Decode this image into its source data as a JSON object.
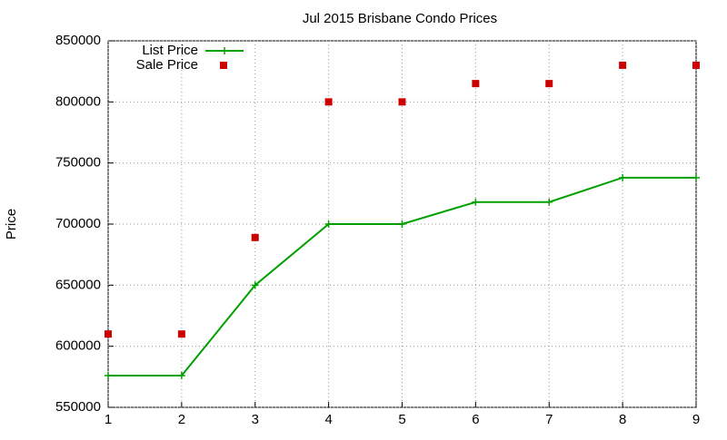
{
  "chart_data": {
    "type": "line",
    "title": "Jul 2015 Brisbane Condo Prices",
    "y_label": "Price",
    "x": [
      1,
      2,
      3,
      4,
      5,
      6,
      7,
      8,
      9
    ],
    "series": [
      {
        "name": "List Price",
        "color": "#00a000",
        "style": "lines+markers",
        "values": [
          576000,
          576000,
          650000,
          700000,
          700000,
          718000,
          718000,
          738000,
          738000
        ]
      },
      {
        "name": "Sale Price",
        "color": "#cc0000",
        "style": "markers",
        "values": [
          610000,
          610000,
          689000,
          800000,
          800000,
          815000,
          815000,
          830000,
          830000
        ]
      }
    ],
    "xlim": [
      1,
      9
    ],
    "xticks": [
      1,
      2,
      3,
      4,
      5,
      6,
      7,
      8,
      9
    ],
    "ylim": [
      550000,
      850000
    ],
    "yticks": [
      550000,
      600000,
      650000,
      700000,
      750000,
      800000,
      850000
    ],
    "grid": true,
    "legend": "top-left"
  }
}
